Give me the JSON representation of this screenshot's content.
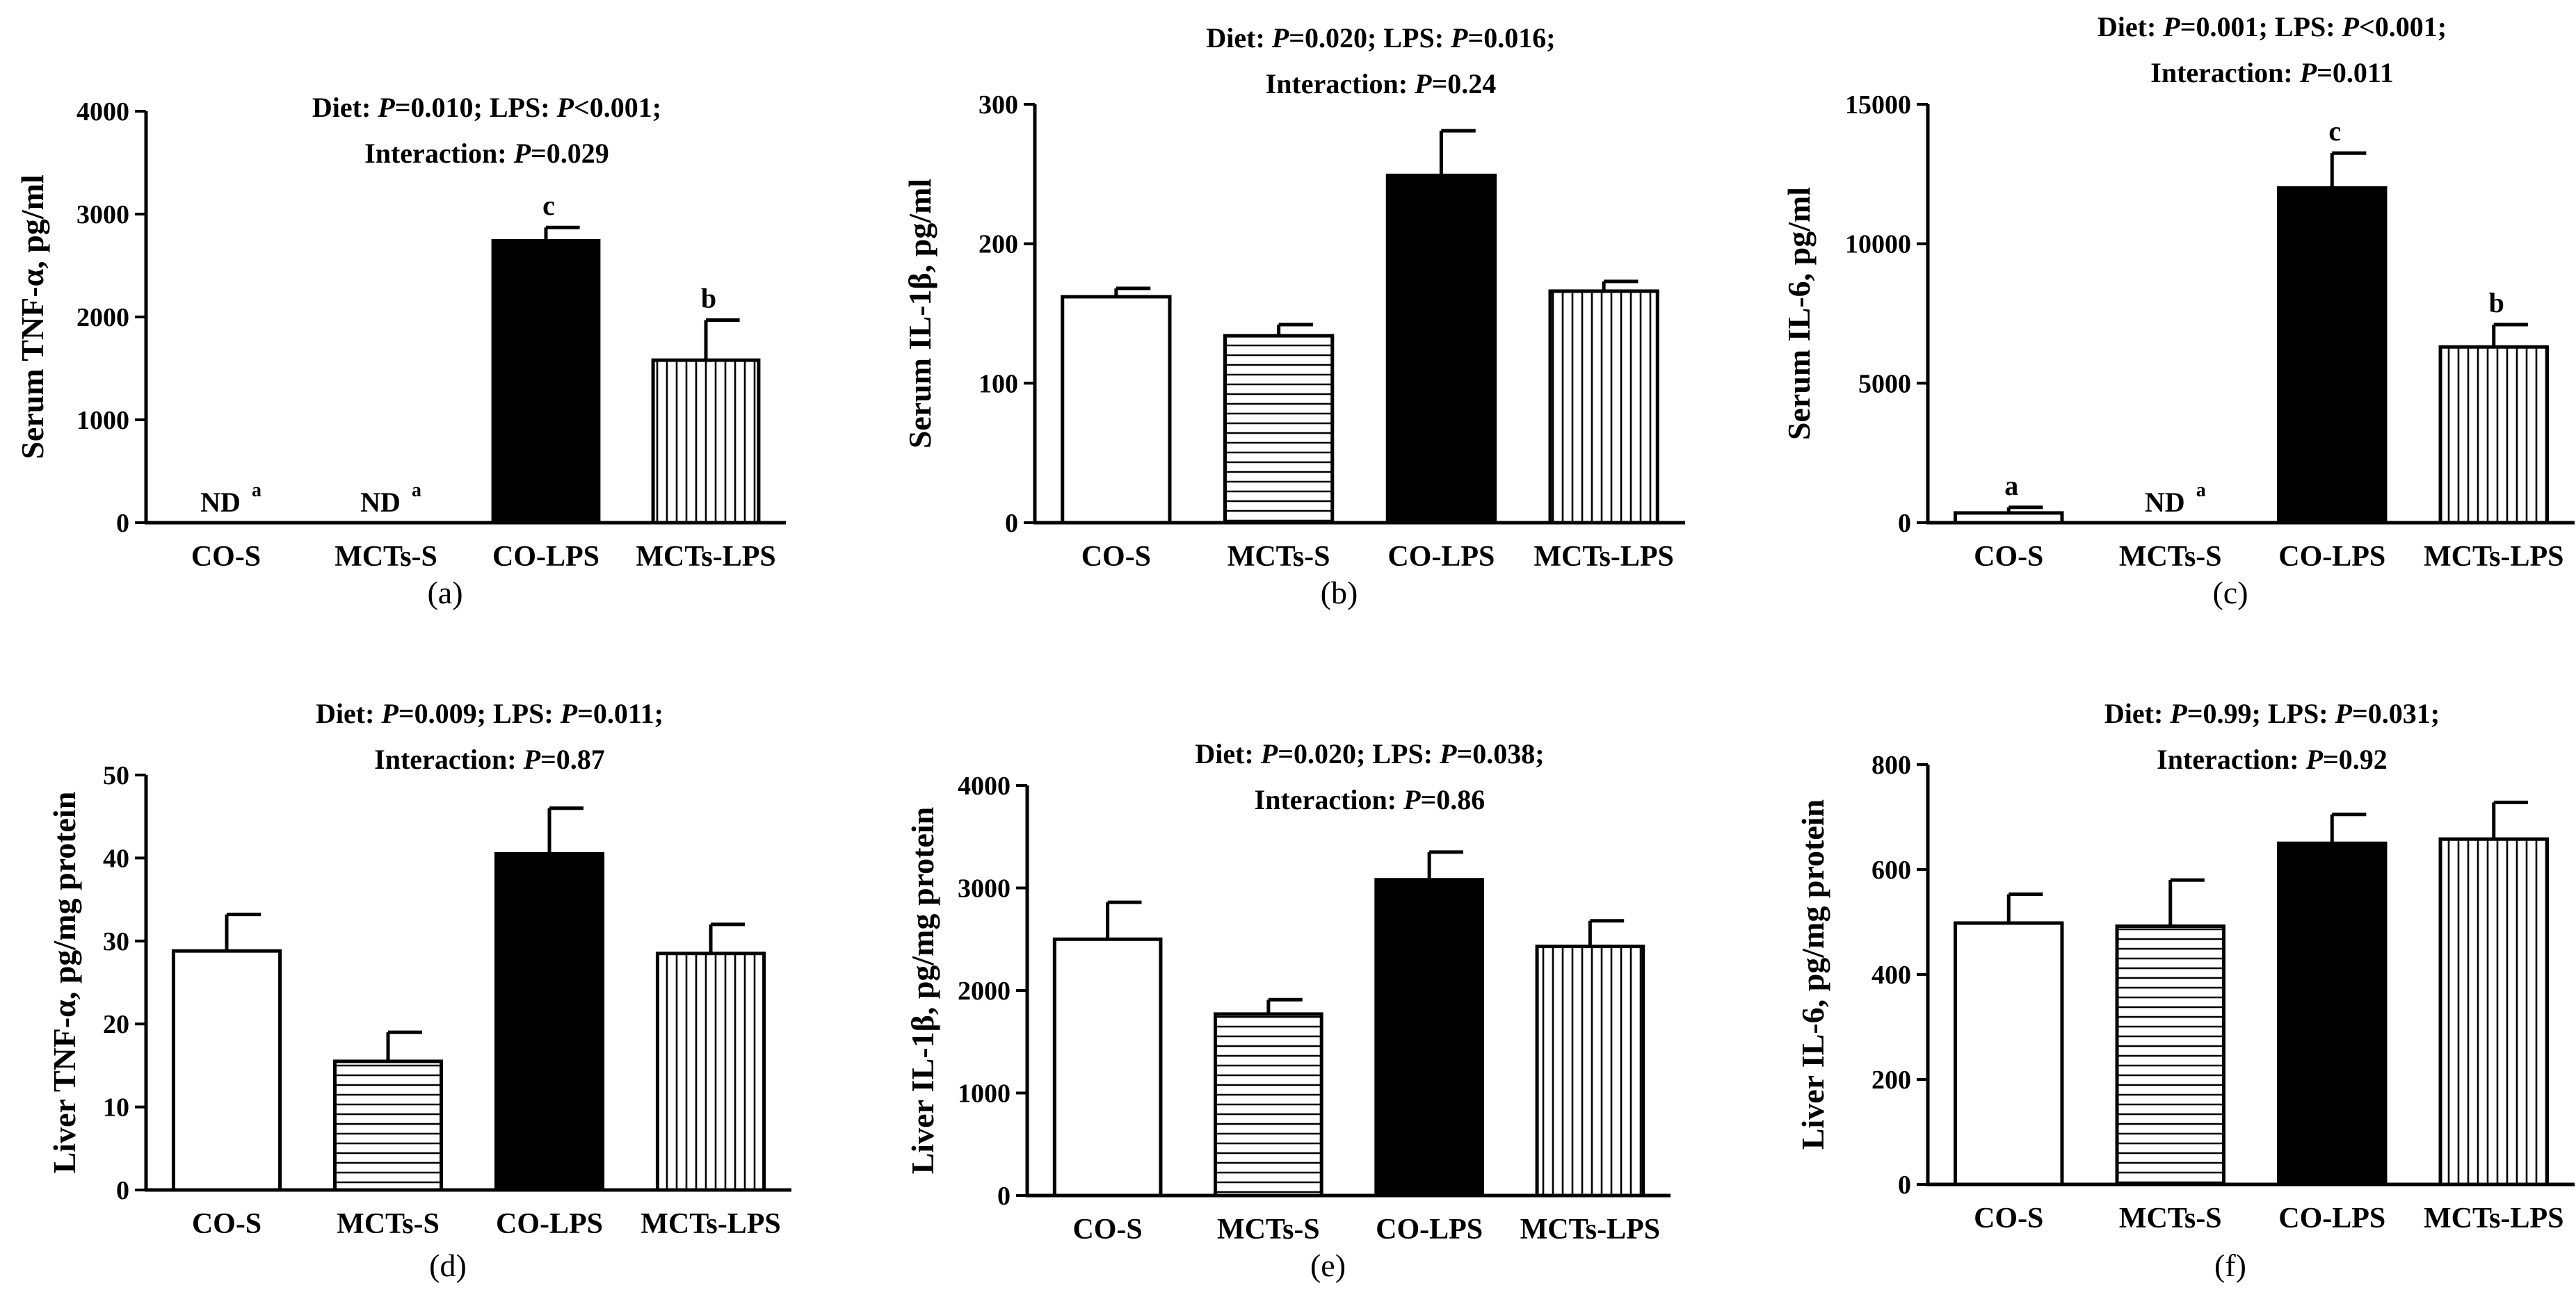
{
  "figure": {
    "categories": [
      "CO-S",
      "MCTs-S",
      "CO-LPS",
      "MCTs-LPS"
    ],
    "fills": [
      "white",
      "hlines",
      "black",
      "vlines"
    ]
  },
  "chart_data": [
    {
      "type": "bar",
      "panel": "(a)",
      "ylabel": "Serum TNF-α, pg/ml",
      "stats": [
        [
          {
            "t": "Diet: "
          },
          {
            "t": "P",
            "i": true
          },
          {
            "t": "=0.010; LPS: "
          },
          {
            "t": "P",
            "i": true
          },
          {
            "t": "<0.001;"
          }
        ],
        [
          {
            "t": "Interaction: "
          },
          {
            "t": "P",
            "i": true
          },
          {
            "t": "=0.029"
          }
        ]
      ],
      "ylim": [
        0,
        4000
      ],
      "yticks": [
        0,
        1000,
        2000,
        3000,
        4000
      ],
      "categories": [
        "CO-S",
        "MCTs-S",
        "CO-LPS",
        "MCTs-LPS"
      ],
      "values": [
        null,
        null,
        2740,
        1580
      ],
      "errors": [
        null,
        null,
        130,
        390
      ],
      "letters": [
        "a",
        "a",
        "c",
        "b"
      ],
      "nd": [
        true,
        true,
        false,
        false
      ],
      "nd_label": "ND"
    },
    {
      "type": "bar",
      "panel": "(b)",
      "ylabel": "Serum IL-1β, pg/ml",
      "stats": [
        [
          {
            "t": "Diet: "
          },
          {
            "t": "P",
            "i": true
          },
          {
            "t": "=0.020; LPS: "
          },
          {
            "t": "P",
            "i": true
          },
          {
            "t": "=0.016;"
          }
        ],
        [
          {
            "t": "Interaction: "
          },
          {
            "t": "P",
            "i": true
          },
          {
            "t": "=0.24"
          }
        ]
      ],
      "ylim": [
        0,
        300
      ],
      "yticks": [
        0,
        100,
        200,
        300
      ],
      "categories": [
        "CO-S",
        "MCTs-S",
        "CO-LPS",
        "MCTs-LPS"
      ],
      "values": [
        162,
        134,
        249,
        166
      ],
      "errors": [
        6,
        8,
        32,
        7
      ],
      "letters": [
        "",
        "",
        "",
        ""
      ],
      "nd": [
        false,
        false,
        false,
        false
      ],
      "nd_label": ""
    },
    {
      "type": "bar",
      "panel": "(c)",
      "ylabel": "Serum IL-6, pg/ml",
      "stats": [
        [
          {
            "t": "Diet: "
          },
          {
            "t": "P",
            "i": true
          },
          {
            "t": "=0.001; LPS: "
          },
          {
            "t": "P",
            "i": true
          },
          {
            "t": "<0.001;"
          }
        ],
        [
          {
            "t": "Interaction: "
          },
          {
            "t": "P",
            "i": true
          },
          {
            "t": "=0.011"
          }
        ]
      ],
      "ylim": [
        0,
        15000
      ],
      "yticks": [
        0,
        5000,
        10000,
        15000
      ],
      "categories": [
        "CO-S",
        "MCTs-S",
        "CO-LPS",
        "MCTs-LPS"
      ],
      "values": [
        350,
        null,
        12000,
        6300
      ],
      "errors": [
        200,
        null,
        1250,
        800
      ],
      "letters": [
        "a",
        "a",
        "c",
        "b"
      ],
      "nd": [
        false,
        true,
        false,
        false
      ],
      "nd_label": "ND"
    },
    {
      "type": "bar",
      "panel": "(d)",
      "ylabel": "Liver TNF-α, pg/mg protein",
      "stats": [
        [
          {
            "t": "Diet: "
          },
          {
            "t": "P",
            "i": true
          },
          {
            "t": "=0.009; LPS: "
          },
          {
            "t": "P",
            "i": true
          },
          {
            "t": "=0.011;"
          }
        ],
        [
          {
            "t": "Interaction: "
          },
          {
            "t": "P",
            "i": true
          },
          {
            "t": "=0.87"
          }
        ]
      ],
      "ylim": [
        0,
        50
      ],
      "yticks": [
        0,
        10,
        20,
        30,
        40,
        50
      ],
      "categories": [
        "CO-S",
        "MCTs-S",
        "CO-LPS",
        "MCTs-LPS"
      ],
      "values": [
        28.8,
        15.5,
        40.5,
        28.5
      ],
      "errors": [
        4.4,
        3.5,
        5.5,
        3.5
      ],
      "letters": [
        "",
        "",
        "",
        ""
      ],
      "nd": [
        false,
        false,
        false,
        false
      ],
      "nd_label": ""
    },
    {
      "type": "bar",
      "panel": "(e)",
      "ylabel": "Liver IL-1β, pg/mg protein",
      "stats": [
        [
          {
            "t": "Diet: "
          },
          {
            "t": "P",
            "i": true
          },
          {
            "t": "=0.020; LPS: "
          },
          {
            "t": "P",
            "i": true
          },
          {
            "t": "=0.038;"
          }
        ],
        [
          {
            "t": "Interaction: "
          },
          {
            "t": "P",
            "i": true
          },
          {
            "t": "=0.86"
          }
        ]
      ],
      "ylim": [
        0,
        4000
      ],
      "yticks": [
        0,
        1000,
        2000,
        3000,
        4000
      ],
      "categories": [
        "CO-S",
        "MCTs-S",
        "CO-LPS",
        "MCTs-LPS"
      ],
      "values": [
        2500,
        1770,
        3080,
        2430
      ],
      "errors": [
        360,
        140,
        270,
        250
      ],
      "letters": [
        "",
        "",
        "",
        ""
      ],
      "nd": [
        false,
        false,
        false,
        false
      ],
      "nd_label": ""
    },
    {
      "type": "bar",
      "panel": "(f)",
      "ylabel": "Liver IL-6, pg/mg protein",
      "stats": [
        [
          {
            "t": "Diet: "
          },
          {
            "t": "P",
            "i": true
          },
          {
            "t": "=0.99; LPS: "
          },
          {
            "t": "P",
            "i": true
          },
          {
            "t": "=0.031;"
          }
        ],
        [
          {
            "t": "Interaction: "
          },
          {
            "t": "P",
            "i": true
          },
          {
            "t": "=0.92"
          }
        ]
      ],
      "ylim": [
        0,
        800
      ],
      "yticks": [
        0,
        200,
        400,
        600,
        800
      ],
      "categories": [
        "CO-S",
        "MCTs-S",
        "CO-LPS",
        "MCTs-LPS"
      ],
      "values": [
        498,
        492,
        650,
        658
      ],
      "errors": [
        55,
        88,
        55,
        70
      ],
      "letters": [
        "",
        "",
        "",
        ""
      ],
      "nd": [
        false,
        false,
        false,
        false
      ],
      "nd_label": ""
    }
  ]
}
